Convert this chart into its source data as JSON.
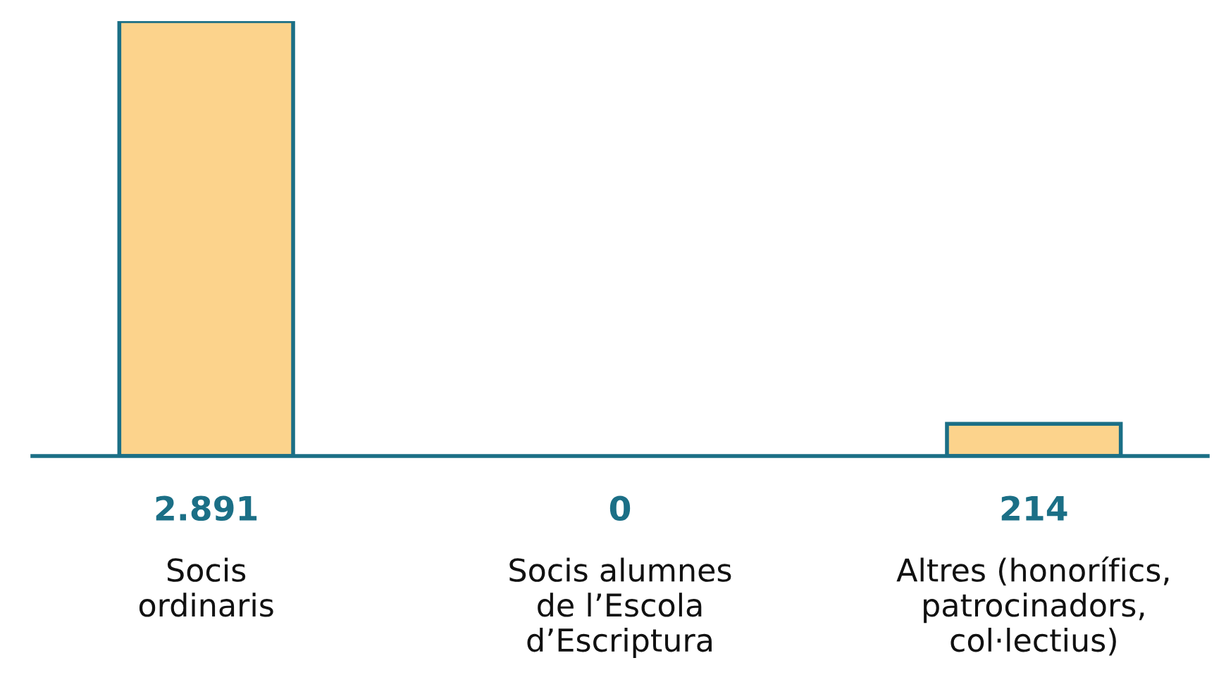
{
  "chart_data": {
    "type": "bar",
    "categories": [
      "Socis\nordinaris",
      "Socis alumnes\nde l’Escola\nd’Escriptura",
      "Altres (honorífics,\npatrocinadors,\ncol·lectius)"
    ],
    "values": [
      2891,
      0,
      214
    ],
    "value_labels": [
      "2.891",
      "0",
      "214"
    ],
    "color": "#fcd38c",
    "grid": false,
    "legend": false
  }
}
